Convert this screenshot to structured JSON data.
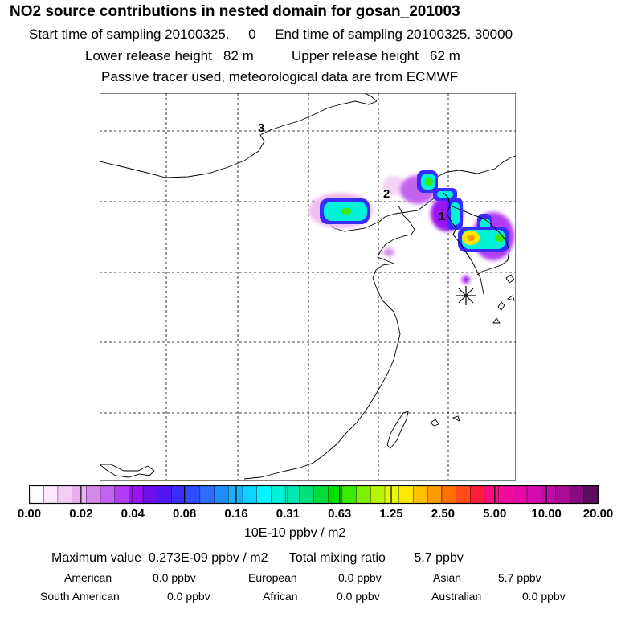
{
  "header": {
    "title": "NO2 source contributions in nested domain for gosan_201003",
    "start_label": "Start time of sampling",
    "start_value": "20100325.     0",
    "end_label": "End time of sampling",
    "end_value": "20100325. 30000",
    "lower_label": "Lower release height",
    "lower_value": "82 m",
    "upper_label": "Upper release height",
    "upper_value": "62 m",
    "tracer_note": "Passive tracer used, meteorological data are from ECMWF"
  },
  "map": {
    "markers": [
      "1",
      "2",
      "3"
    ],
    "receptor_symbol": "gosan-receptor-star"
  },
  "colorbar": {
    "colors": [
      "#ffffff",
      "#fbe8fb",
      "#f4cdf6",
      "#ecb0f2",
      "#d38be8",
      "#c264f0",
      "#b13cf2",
      "#9a14f0",
      "#6c10ea",
      "#5116f4",
      "#3a2cff",
      "#2e4dff",
      "#2c6fff",
      "#1f8fff",
      "#18b0ff",
      "#10d2ff",
      "#00f6ff",
      "#00f0d8",
      "#00e8b0",
      "#00e07a",
      "#00dc3a",
      "#00e000",
      "#3cea00",
      "#7ef000",
      "#b8f400",
      "#e8f800",
      "#ffe800",
      "#ffc000",
      "#ff9a00",
      "#ff7000",
      "#ff4a1a",
      "#ff1e3a",
      "#ff0c80",
      "#f00c9c",
      "#e40aa8",
      "#d40cb0",
      "#c00ca8",
      "#a80c98",
      "#880c80",
      "#5c0c5c"
    ],
    "ticks": [
      "0.00",
      "0.02",
      "0.04",
      "0.08",
      "0.16",
      "0.31",
      "0.63",
      "1.25",
      "2.50",
      "5.00",
      "10.00",
      "20.00"
    ],
    "units": "10E-10 ppbv / m2"
  },
  "summary": {
    "max_label": "Maximum value",
    "max_value": "0.273E-09 ppbv / m2",
    "total_label": "Total mixing ratio",
    "total_value": "5.7 ppbv",
    "regions": [
      {
        "name": "American",
        "value": "0.0 ppbv"
      },
      {
        "name": "European",
        "value": "0.0 ppbv"
      },
      {
        "name": "Asian",
        "value": "5.7 ppbv"
      },
      {
        "name": "South American",
        "value": "0.0 ppbv"
      },
      {
        "name": "African",
        "value": "0.0 ppbv"
      },
      {
        "name": "Australian",
        "value": "0.0 ppbv"
      }
    ]
  }
}
